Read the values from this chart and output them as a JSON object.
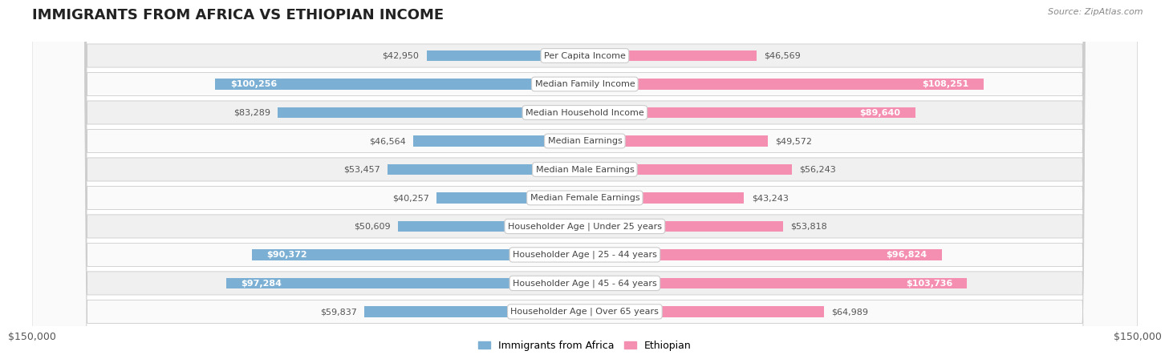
{
  "title": "IMMIGRANTS FROM AFRICA VS ETHIOPIAN INCOME",
  "source": "Source: ZipAtlas.com",
  "categories": [
    "Per Capita Income",
    "Median Family Income",
    "Median Household Income",
    "Median Earnings",
    "Median Male Earnings",
    "Median Female Earnings",
    "Householder Age | Under 25 years",
    "Householder Age | 25 - 44 years",
    "Householder Age | 45 - 64 years",
    "Householder Age | Over 65 years"
  ],
  "africa_values": [
    42950,
    100256,
    83289,
    46564,
    53457,
    40257,
    50609,
    90372,
    97284,
    59837
  ],
  "ethiopian_values": [
    46569,
    108251,
    89640,
    49572,
    56243,
    43243,
    53818,
    96824,
    103736,
    64989
  ],
  "africa_color": "#7bafd4",
  "ethiopian_color": "#f48fb1",
  "africa_inside_threshold": 88000,
  "ethiopian_inside_threshold": 88000,
  "bar_height": 0.38,
  "max_value": 150000,
  "background_color": "#ffffff",
  "row_bg_color": "#f0f0f0",
  "title_fontsize": 13,
  "label_fontsize": 8,
  "category_fontsize": 8,
  "legend_fontsize": 9,
  "axis_label": "$150,000"
}
